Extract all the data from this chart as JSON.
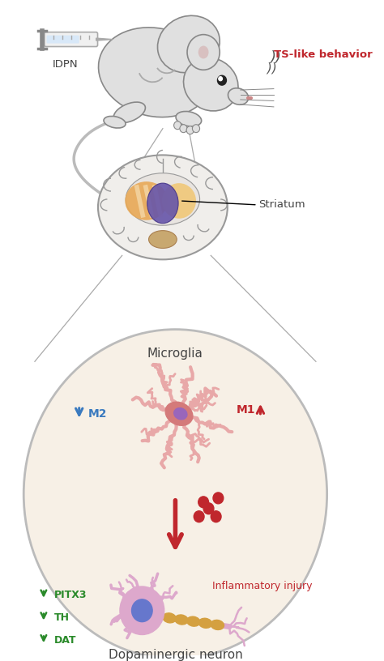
{
  "bg_color": "#ffffff",
  "circle_bg": "#f7f0e6",
  "circle_edge": "#bbbbbb",
  "text_idpn": "IDPN",
  "text_ts": "TS-like behavior",
  "text_striatum": "Striatum",
  "text_microglia": "Microglia",
  "text_m2": "M2",
  "text_m1": "M1",
  "text_inj": "Inflammatory injury",
  "text_pitx3": "PITX3",
  "text_th": "TH",
  "text_dat": "DAT",
  "text_dopaminergic": "Dopaminergic neuron",
  "color_red": "#c0272d",
  "color_blue": "#3a7abf",
  "color_green": "#2a8a2a",
  "color_dark": "#444444",
  "color_gray": "#888888",
  "microglia_body": "#e8a8a8",
  "microglia_center": "#d47a7a",
  "microglia_nucleus": "#9966bb",
  "dopamine_body": "#dda8cc",
  "dopamine_nucleus": "#6677cc",
  "axon_color": "#d4a040",
  "dots_color": "#c0272d",
  "brain_outer": "#f0eeeb",
  "brain_stroke": "#999999",
  "striatum_color": "#e8a855",
  "basal_color": "#6655aa",
  "mouse_body": "#e0e0e0",
  "mouse_stroke": "#888888"
}
